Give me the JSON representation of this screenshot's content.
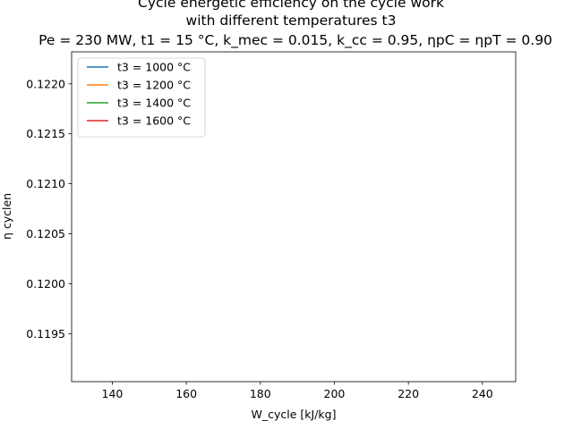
{
  "chart_data": {
    "type": "line",
    "title": {
      "line1": "Cycle energetic efficiency on the cycle work",
      "line2": "with different temperatures t3",
      "line3": "Pe = 230 MW, t1 = 15 °C, k_mec = 0.015, k_cc = 0.95, ηpC = ηpT = 0.90"
    },
    "xlabel": "W_cycle [kJ/kg]",
    "ylabel": "η cyclen",
    "xlim": [
      129,
      249
    ],
    "ylim": [
      0.11902,
      0.12232
    ],
    "xticks": [
      140,
      160,
      180,
      200,
      220,
      240
    ],
    "xtick_labels": [
      "140",
      "160",
      "180",
      "200",
      "220",
      "240"
    ],
    "yticks": [
      0.1195,
      0.12,
      0.1205,
      0.121,
      0.1215,
      0.122
    ],
    "ytick_labels": [
      "0.1195",
      "0.1200",
      "0.1205",
      "0.1210",
      "0.1215",
      "0.1220"
    ],
    "grid": false,
    "legend_position": "top-left",
    "series": [
      {
        "name": "t3 = 1000 °C",
        "color": "#1f77b4",
        "x": [],
        "y": []
      },
      {
        "name": "t3 = 1200 °C",
        "color": "#ff7f0e",
        "x": [],
        "y": []
      },
      {
        "name": "t3 = 1400 °C",
        "color": "#2ca02c",
        "x": [],
        "y": []
      },
      {
        "name": "t3 = 1600 °C",
        "color": "#d62728",
        "x": [],
        "y": []
      }
    ]
  }
}
